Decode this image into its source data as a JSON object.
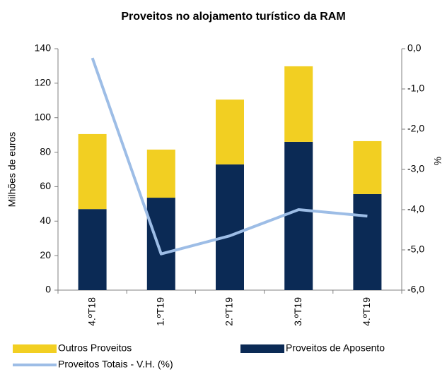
{
  "chart_data": {
    "type": "bar",
    "stacked": true,
    "title": "Proveitos  no alojamento turístico da RAM",
    "ylabel": "Milhões de euros",
    "y2label": "%",
    "categories": [
      "4.ºT18",
      "1.ºT19",
      "2.ºT19",
      "3.ºT19",
      "4.ºT19"
    ],
    "series": [
      {
        "name": "Proveitos de Aposento",
        "color": "#0b2a55",
        "values": [
          47,
          53.6,
          72.9,
          86,
          55.7
        ]
      },
      {
        "name": "Outros Proveitos",
        "color": "#f2cf22",
        "values": [
          43.5,
          27.9,
          37.6,
          43.8,
          30.7
        ]
      },
      {
        "name": "Proveitos Totais - V.H. (%)",
        "color": "#9dbde6",
        "type": "line",
        "axis": "y2",
        "values": [
          -0.23,
          -5.1,
          -4.65,
          -4.0,
          -4.16
        ]
      }
    ],
    "ylim": [
      0,
      140
    ],
    "yticks": [
      0,
      20,
      40,
      60,
      80,
      100,
      120,
      140
    ],
    "y2lim": [
      -6,
      0
    ],
    "y2ticks": [
      {
        "value": 0,
        "label": "0,0"
      },
      {
        "value": -1,
        "label": "-1,0"
      },
      {
        "value": -2,
        "label": "-2,0"
      },
      {
        "value": -3,
        "label": "-3,0"
      },
      {
        "value": -4,
        "label": "-4,0"
      },
      {
        "value": -5,
        "label": "-5,0"
      },
      {
        "value": -6,
        "label": "-6,0"
      }
    ]
  }
}
